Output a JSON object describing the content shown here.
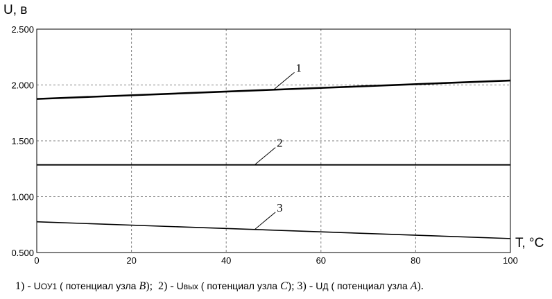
{
  "chart_data": {
    "type": "line",
    "ylabel": "U, в",
    "xlabel": "Т, °С",
    "xlim": [
      0,
      100
    ],
    "ylim": [
      0.5,
      2.5
    ],
    "x_ticks": [
      0,
      20,
      40,
      60,
      80,
      100
    ],
    "x_tick_labels": [
      "0",
      "20",
      "40",
      "60",
      "80",
      "100"
    ],
    "y_ticks": [
      0.5,
      1.0,
      1.5,
      2.0,
      2.5
    ],
    "y_tick_labels": [
      "0.500",
      "1.000",
      "1.500",
      "2.000",
      "2.500"
    ],
    "grid": true,
    "series": [
      {
        "name": "1",
        "x": [
          0,
          100
        ],
        "y": [
          1.875,
          2.04
        ],
        "label_at": 50
      },
      {
        "name": "2",
        "x": [
          0,
          100
        ],
        "y": [
          1.285,
          1.285
        ],
        "label_at": 46
      },
      {
        "name": "3",
        "x": [
          0,
          100
        ],
        "y": [
          0.775,
          0.625
        ],
        "label_at": 46
      }
    ]
  },
  "caption": {
    "item1_num": "1) -",
    "item1_sym": "U",
    "item1_sub": "ОУ1",
    "item1_text_a": "( потенциал узла",
    "item1_node": "B",
    "item1_text_b": ");",
    "item2_num": "2) -",
    "item2_sym": "U",
    "item2_sub": "вых",
    "item2_text_a": "( потенциал узла",
    "item2_node": "C",
    "item2_text_b": ");",
    "item3_num": "3) -",
    "item3_sym": "U",
    "item3_sub": "Д",
    "item3_text_a": "( потенциал узла",
    "item3_node": "A",
    "item3_text_b": ")."
  }
}
